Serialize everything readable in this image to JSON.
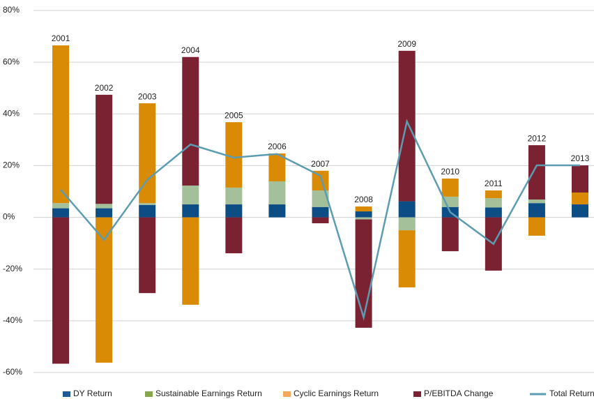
{
  "chart_data": {
    "type": "stacked-bar-line",
    "categories": [
      "2001",
      "2002",
      "2003",
      "2004",
      "2005",
      "2006",
      "2007",
      "2008",
      "2009",
      "2010",
      "2011",
      "2012",
      "2013"
    ],
    "series": [
      {
        "name": "DY Return",
        "color": "#0d4d86",
        "legend_color": "#1f5a96",
        "type": "bar",
        "values": [
          3.5,
          3.5,
          4.8,
          5,
          5,
          5,
          4,
          2.3,
          6.2,
          4,
          3.8,
          5.5,
          5
        ]
      },
      {
        "name": "Sustainable Earnings Return",
        "color": "#a3c09a",
        "legend_color": "#86a64e",
        "type": "bar",
        "values": [
          2,
          1.7,
          0.7,
          7.3,
          6.5,
          8.9,
          6.4,
          -0.8,
          -5,
          4,
          3.6,
          1.4,
          0
        ]
      },
      {
        "name": "Cyclic Earnings Return",
        "color": "#d98b05",
        "legend_color": "#f5a85c",
        "type": "bar",
        "values": [
          61,
          -56.2,
          38.6,
          -33.8,
          25.3,
          10.8,
          7.6,
          1.9,
          -22.1,
          7,
          3,
          -7.1,
          4.6
        ]
      },
      {
        "name": "P/EBITDA Change",
        "color": "#7b2232",
        "legend_color": "#7b2232",
        "type": "bar",
        "values": [
          -56.6,
          42.2,
          -29.3,
          49.7,
          -13.9,
          0,
          -2.3,
          -41.9,
          58.2,
          -13.1,
          -20.6,
          21,
          10.5
        ]
      },
      {
        "name": "Total Return",
        "color": "#5b9cb2",
        "legend_color": "#5b9cb2",
        "type": "line",
        "values": [
          10.7,
          -8.7,
          14.5,
          28.2,
          23.1,
          24.5,
          16.1,
          -38.7,
          37.1,
          2,
          -10.3,
          20.1,
          20.1
        ]
      }
    ],
    "ylim": [
      -60,
      80
    ],
    "yticks": [
      {
        "value": -60,
        "label": "-60%"
      },
      {
        "value": -40,
        "label": "-40%"
      },
      {
        "value": -20,
        "label": "-20%"
      },
      {
        "value": 0,
        "label": "0%"
      },
      {
        "value": 20,
        "label": "20%"
      },
      {
        "value": 40,
        "label": "40%"
      },
      {
        "value": 60,
        "label": "60%"
      },
      {
        "value": 80,
        "label": "80%"
      }
    ],
    "grid": true,
    "legend": "bottom"
  }
}
